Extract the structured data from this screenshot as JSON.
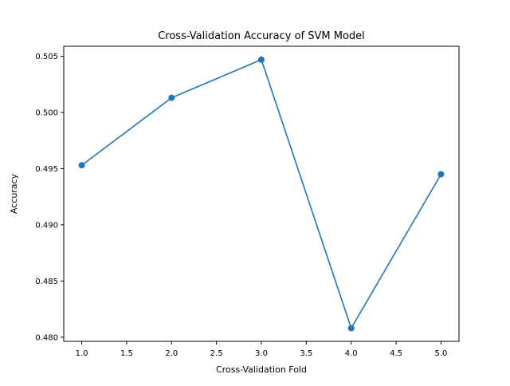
{
  "chart_data": {
    "type": "line",
    "title": "Cross-Validation Accuracy of SVM Model",
    "xlabel": "Cross-Validation Fold",
    "ylabel": "Accuracy",
    "x": [
      1,
      2,
      3,
      4,
      5
    ],
    "series": [
      {
        "values": [
          0.4953,
          0.5013,
          0.5047,
          0.4808,
          0.4945
        ],
        "color": "#1f77b4",
        "marker": "circle"
      }
    ],
    "xlim": [
      0.8,
      5.2
    ],
    "ylim": [
      0.47963,
      0.50589
    ],
    "xticks": [
      1.0,
      1.5,
      2.0,
      2.5,
      3.0,
      3.5,
      4.0,
      4.5,
      5.0
    ],
    "xtick_labels": [
      "1.0",
      "1.5",
      "2.0",
      "2.5",
      "3.0",
      "3.5",
      "4.0",
      "4.5",
      "5.0"
    ],
    "yticks": [
      0.48,
      0.485,
      0.49,
      0.495,
      0.5,
      0.505
    ],
    "ytick_labels": [
      "0.480",
      "0.485",
      "0.490",
      "0.495",
      "0.500",
      "0.505"
    ],
    "grid": false,
    "legend": false
  }
}
